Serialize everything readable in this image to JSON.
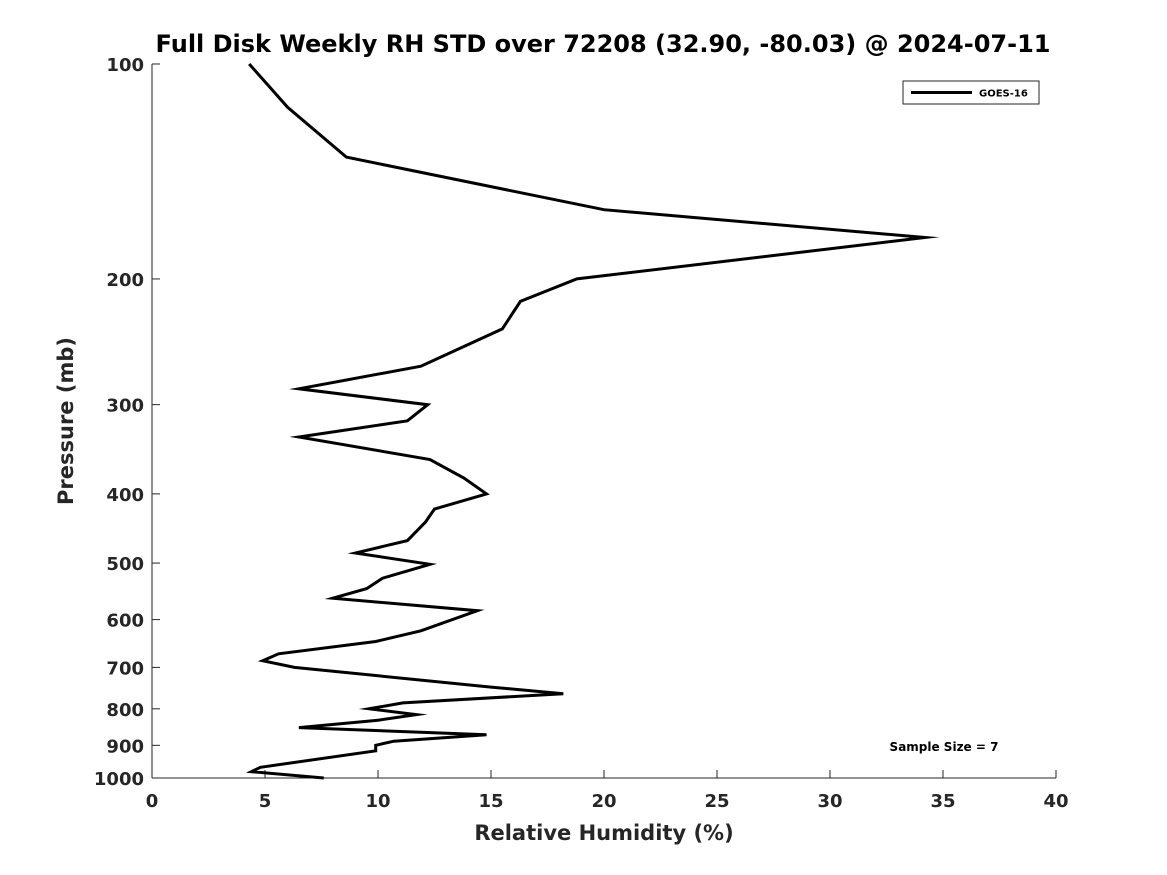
{
  "chart_data": {
    "type": "line",
    "title": "Full Disk Weekly RH STD over 72208 (32.90, -80.03) @ 2024-07-11",
    "xlabel": "Relative Humidity (%)",
    "ylabel": "Pressure (mb)",
    "xlim": [
      0,
      40
    ],
    "ylim": [
      1000,
      100
    ],
    "y_scale": "log",
    "y_reversed": true,
    "x_ticks": [
      "0",
      "5",
      "10",
      "15",
      "20",
      "25",
      "30",
      "35",
      "40"
    ],
    "y_ticks": [
      "100",
      "200",
      "300",
      "400",
      "500",
      "600",
      "700",
      "800",
      "900",
      "1000"
    ],
    "grid": false,
    "legend": {
      "position": "top-right",
      "entries": [
        "GOES-16"
      ]
    },
    "annotation": "Sample Size = 7",
    "series": [
      {
        "name": "GOES-16",
        "color": "#000000",
        "points": [
          [
            4.3,
            100
          ],
          [
            6.0,
            115
          ],
          [
            8.6,
            135
          ],
          [
            20.0,
            160
          ],
          [
            34.2,
            175
          ],
          [
            18.8,
            200
          ],
          [
            16.3,
            215
          ],
          [
            15.5,
            235
          ],
          [
            11.9,
            265
          ],
          [
            6.5,
            285
          ],
          [
            12.2,
            300
          ],
          [
            11.3,
            316
          ],
          [
            6.5,
            333
          ],
          [
            12.3,
            358
          ],
          [
            13.8,
            380
          ],
          [
            14.8,
            400
          ],
          [
            12.5,
            420
          ],
          [
            12.1,
            438
          ],
          [
            11.3,
            465
          ],
          [
            9.0,
            484
          ],
          [
            12.3,
            502
          ],
          [
            10.2,
            525
          ],
          [
            9.5,
            543
          ],
          [
            8.0,
            560
          ],
          [
            14.4,
            583
          ],
          [
            11.9,
            622
          ],
          [
            9.9,
            644
          ],
          [
            5.6,
            670
          ],
          [
            4.9,
            685
          ],
          [
            6.3,
            700
          ],
          [
            15.0,
            746
          ],
          [
            18.2,
            762
          ],
          [
            11.1,
            785
          ],
          [
            9.6,
            800
          ],
          [
            11.7,
            815
          ],
          [
            10.0,
            830
          ],
          [
            6.5,
            850
          ],
          [
            14.8,
            870
          ],
          [
            10.7,
            888
          ],
          [
            9.9,
            900
          ],
          [
            9.9,
            916
          ],
          [
            4.8,
            966
          ],
          [
            4.4,
            980
          ],
          [
            7.6,
            1000
          ]
        ]
      }
    ]
  }
}
